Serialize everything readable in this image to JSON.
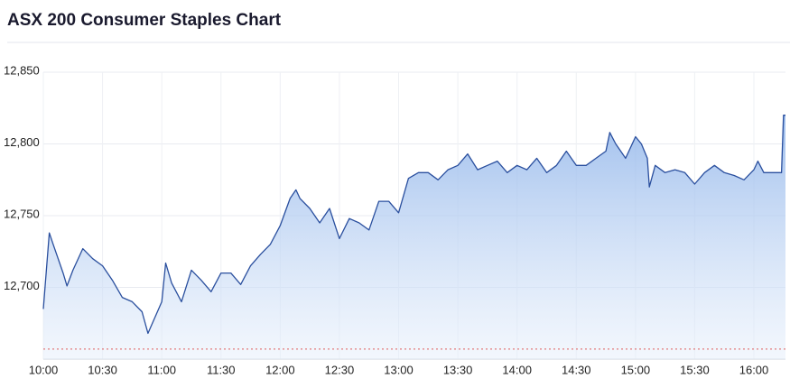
{
  "chart_data": {
    "type": "area",
    "title": "ASX 200 Consumer Staples Chart",
    "x": [
      600,
      603,
      605,
      610,
      612,
      615,
      620,
      625,
      630,
      635,
      640,
      645,
      650,
      653,
      660,
      662,
      665,
      670,
      675,
      680,
      685,
      690,
      695,
      700,
      705,
      710,
      715,
      720,
      725,
      728,
      730,
      735,
      740,
      745,
      750,
      755,
      760,
      765,
      770,
      775,
      780,
      785,
      790,
      795,
      800,
      805,
      810,
      815,
      820,
      825,
      830,
      835,
      840,
      845,
      850,
      855,
      860,
      865,
      870,
      875,
      880,
      885,
      887,
      890,
      895,
      900,
      903,
      906,
      907,
      910,
      915,
      920,
      925,
      930,
      935,
      940,
      945,
      950,
      955,
      960,
      962,
      965,
      970,
      974,
      975,
      976
    ],
    "values": [
      12685,
      12738,
      12730,
      12710,
      12701,
      12712,
      12727,
      12720,
      12715,
      12705,
      12693,
      12690,
      12683,
      12668,
      12690,
      12717,
      12703,
      12690,
      12712,
      12705,
      12697,
      12710,
      12710,
      12702,
      12715,
      12723,
      12730,
      12743,
      12762,
      12768,
      12762,
      12755,
      12745,
      12755,
      12734,
      12748,
      12745,
      12740,
      12760,
      12760,
      12752,
      12776,
      12780,
      12780,
      12775,
      12782,
      12785,
      12793,
      12782,
      12785,
      12788,
      12780,
      12785,
      12782,
      12790,
      12780,
      12785,
      12795,
      12785,
      12785,
      12790,
      12795,
      12808,
      12800,
      12790,
      12805,
      12800,
      12790,
      12770,
      12785,
      12780,
      12782,
      12780,
      12772,
      12780,
      12785,
      12780,
      12778,
      12775,
      12782,
      12788,
      12780,
      12780,
      12780,
      12820,
      12820
    ],
    "color": "#2a4f9e",
    "xlim": [
      600,
      976
    ],
    "ylim": [
      12650,
      12850
    ],
    "xticks": [
      {
        "value": 600,
        "label": "10:00"
      },
      {
        "value": 630,
        "label": "10:30"
      },
      {
        "value": 660,
        "label": "11:00"
      },
      {
        "value": 690,
        "label": "11:30"
      },
      {
        "value": 720,
        "label": "12:00"
      },
      {
        "value": 750,
        "label": "12:30"
      },
      {
        "value": 780,
        "label": "13:00"
      },
      {
        "value": 810,
        "label": "13:30"
      },
      {
        "value": 840,
        "label": "14:00"
      },
      {
        "value": 870,
        "label": "14:30"
      },
      {
        "value": 900,
        "label": "15:00"
      },
      {
        "value": 930,
        "label": "15:30"
      },
      {
        "value": 960,
        "label": "16:00"
      }
    ],
    "yticks": [
      {
        "value": 12700,
        "label": "12,700"
      },
      {
        "value": 12750,
        "label": "12,750"
      },
      {
        "value": 12800,
        "label": "12,800"
      },
      {
        "value": 12850,
        "label": "12,850"
      }
    ],
    "grid": true,
    "reference_line": {
      "value": 12657,
      "color": "#e05a5a"
    }
  }
}
